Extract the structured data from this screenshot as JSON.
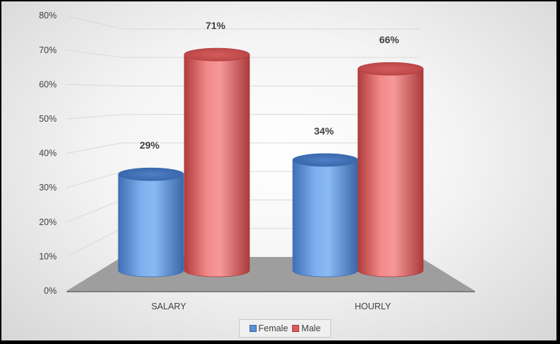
{
  "chart_data": {
    "type": "bar",
    "style": "3d-cylinder",
    "categories": [
      "SALARY",
      "HOURLY"
    ],
    "series": [
      {
        "name": "Female",
        "values": [
          29,
          34
        ],
        "labels": [
          "29%",
          "34%"
        ],
        "color": "#5b8fd6"
      },
      {
        "name": "Male",
        "values": [
          71,
          66
        ],
        "labels": [
          "71%",
          "66%"
        ],
        "color": "#d95b5b"
      }
    ],
    "y_ticks": [
      "0%",
      "10%",
      "20%",
      "30%",
      "40%",
      "50%",
      "60%",
      "70%",
      "80%"
    ],
    "ylim": [
      0,
      80
    ],
    "grid": true,
    "legend": "bottom"
  }
}
